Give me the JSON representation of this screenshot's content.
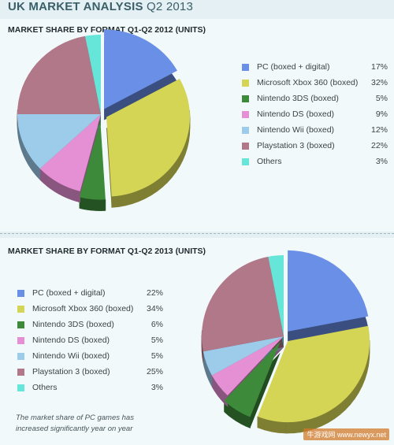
{
  "header": {
    "title_bold": "UK Market Analysis",
    "title_light": "Q2 2013"
  },
  "colors": {
    "PC (boxed + digital)": "#6a8fe6",
    "Microsoft Xbox 360 (boxed)": "#d4d455",
    "Nintendo 3DS (boxed)": "#3d8a3a",
    "Nintendo DS (boxed)": "#e58fd4",
    "Nintendo Wii (boxed)": "#9dcbea",
    "Playstation 3 (boxed)": "#b07888",
    "Others": "#66e6d8"
  },
  "chart_data": [
    {
      "type": "pie",
      "title": "MARKET SHARE BY FORMAT Q1-Q2 2012 (UNITS)",
      "categories": [
        "PC (boxed + digital)",
        "Microsoft Xbox 360 (boxed)",
        "Nintendo 3DS (boxed)",
        "Nintendo DS (boxed)",
        "Nintendo Wii (boxed)",
        "Playstation 3 (boxed)",
        "Others"
      ],
      "values": [
        17,
        32,
        5,
        9,
        12,
        22,
        3
      ],
      "value_labels": [
        "17%",
        "32%",
        "5%",
        "9%",
        "12%",
        "22%",
        "3%"
      ],
      "exploded": [
        "PC (boxed + digital)",
        "Microsoft Xbox 360 (boxed)",
        "Nintendo 3DS (boxed)"
      ],
      "legend_position": "right"
    },
    {
      "type": "pie",
      "title": "MARKET SHARE BY FORMAT Q1-Q2 2013 (UNITS)",
      "categories": [
        "PC (boxed + digital)",
        "Microsoft Xbox 360 (boxed)",
        "Nintendo 3DS (boxed)",
        "Nintendo DS (boxed)",
        "Nintendo Wii (boxed)",
        "Playstation 3 (boxed)",
        "Others"
      ],
      "values": [
        22,
        34,
        6,
        5,
        5,
        25,
        3
      ],
      "value_labels": [
        "22%",
        "34%",
        "6%",
        "5%",
        "5%",
        "25%",
        "3%"
      ],
      "exploded": [
        "PC (boxed + digital)",
        "Microsoft Xbox 360 (boxed)",
        "Nintendo 3DS (boxed)"
      ],
      "legend_position": "left"
    }
  ],
  "note": "The market share of PC games has increased significantly year on year",
  "watermark": "牛游戏网 www.newyx.net"
}
